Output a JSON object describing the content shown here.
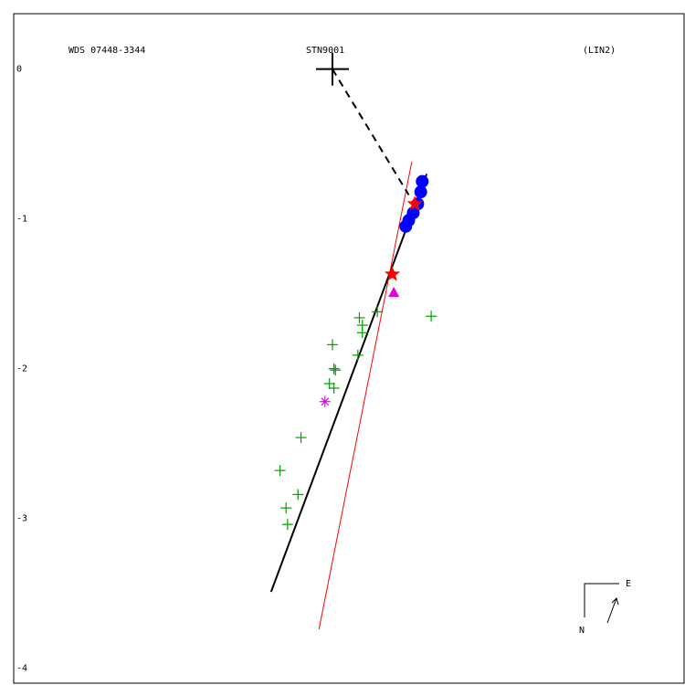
{
  "chart_data": {
    "type": "scatter",
    "title_left": "WDS 07448-3344",
    "title": "STN9001",
    "title_right": "(LIN2)",
    "compass": {
      "east": "E",
      "north": "N"
    },
    "xlim": [
      -2.13,
      2.35
    ],
    "ylim": [
      -4.1,
      0.37
    ],
    "yticks": [
      0,
      -1,
      -2,
      -3,
      -4
    ],
    "grid": false,
    "primary": {
      "marker": "cross",
      "color": "#000000",
      "x": [
        0
      ],
      "y": [
        0
      ]
    },
    "series": [
      {
        "marker": "plus",
        "color": "#00a000",
        "x": [
          0.66,
          0.18,
          0.2,
          0.2,
          0.3,
          0.17,
          0.0,
          0.01,
          0.02,
          -0.02,
          0.01,
          -0.21,
          -0.35,
          -0.23,
          -0.31,
          -0.3
        ],
        "y": [
          -1.65,
          -1.66,
          -1.71,
          -1.76,
          -1.62,
          -1.91,
          -1.84,
          -2.0,
          -2.01,
          -2.1,
          -2.13,
          -2.46,
          -2.68,
          -2.84,
          -2.93,
          -3.04
        ]
      },
      {
        "marker": "circle",
        "color": "#0000ff",
        "x": [
          0.6,
          0.59,
          0.57,
          0.54,
          0.51,
          0.49
        ],
        "y": [
          -0.75,
          -0.82,
          -0.9,
          -0.96,
          -1.01,
          -1.05
        ]
      },
      {
        "marker": "asterisk",
        "color": "#e000e0",
        "x": [
          -0.05
        ],
        "y": [
          -2.22
        ]
      },
      {
        "marker": "triangle",
        "color": "#e000e0",
        "x": [
          0.41
        ],
        "y": [
          -1.49
        ]
      },
      {
        "marker": "star",
        "color": "#ff0000",
        "x": [
          0.4,
          0.55
        ],
        "y": [
          -1.37,
          -0.9
        ]
      }
    ],
    "lines": [
      {
        "style": "solid",
        "color": "#000000",
        "width": 2,
        "x": [
          -0.41,
          0.63
        ],
        "y": [
          -3.49,
          -0.7
        ]
      },
      {
        "style": "solid",
        "color": "#ff0000",
        "width": 1,
        "x": [
          -0.09,
          0.53
        ],
        "y": [
          -3.74,
          -0.62
        ]
      },
      {
        "style": "dashed",
        "color": "#000000",
        "width": 2,
        "x": [
          0,
          0.51
        ],
        "y": [
          0,
          -0.84
        ]
      }
    ]
  }
}
